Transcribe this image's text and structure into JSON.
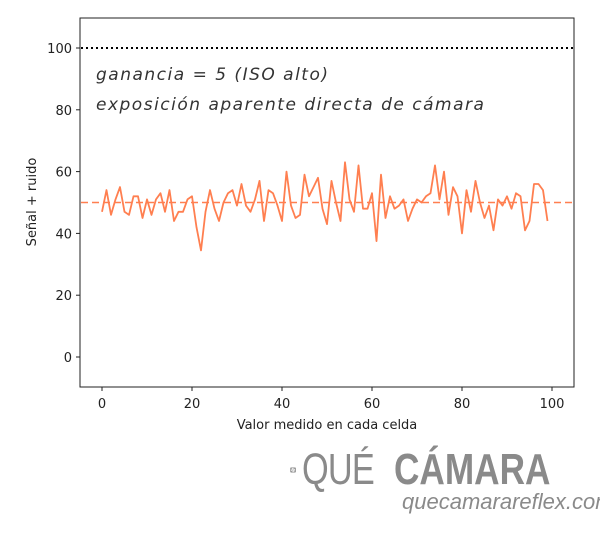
{
  "chart_data": {
    "type": "line",
    "title": "",
    "xlabel": "Valor medido en cada celda",
    "ylabel": "Señal + ruido",
    "xlim": [
      -5,
      104
    ],
    "ylim": [
      -10,
      110
    ],
    "xticks": [
      0,
      20,
      40,
      60,
      80,
      100
    ],
    "yticks": [
      0,
      20,
      40,
      60,
      80,
      100
    ],
    "grid": false,
    "annotations": [
      "ganancia = 5  (ISO alto)",
      "exposición aparente directa de cámara"
    ],
    "reference_lines": [
      {
        "name": "saturacion",
        "y": 100,
        "style": "dotted",
        "color": "#000000"
      },
      {
        "name": "senal-media",
        "y": 50,
        "style": "dashed",
        "color": "#ff7f50"
      }
    ],
    "series": [
      {
        "name": "señal + ruido",
        "color": "#ff7f50",
        "x": [
          0,
          1,
          2,
          3,
          4,
          5,
          6,
          7,
          8,
          9,
          10,
          11,
          12,
          13,
          14,
          15,
          16,
          17,
          18,
          19,
          20,
          21,
          22,
          23,
          24,
          25,
          26,
          27,
          28,
          29,
          30,
          31,
          32,
          33,
          34,
          35,
          36,
          37,
          38,
          39,
          40,
          41,
          42,
          43,
          44,
          45,
          46,
          47,
          48,
          49,
          50,
          51,
          52,
          53,
          54,
          55,
          56,
          57,
          58,
          59,
          60,
          61,
          62,
          63,
          64,
          65,
          66,
          67,
          68,
          69,
          70,
          71,
          72,
          73,
          74,
          75,
          76,
          77,
          78,
          79,
          80,
          81,
          82,
          83,
          84,
          85,
          86,
          87,
          88,
          89,
          90,
          91,
          92,
          93,
          94,
          95,
          96,
          97,
          98,
          99
        ],
        "values": [
          47,
          54,
          46,
          51,
          55,
          47,
          46,
          52,
          52,
          45,
          51,
          46,
          51,
          53,
          47,
          54,
          44,
          47,
          47,
          51,
          52,
          42,
          34.5,
          47,
          54,
          48,
          44,
          50,
          53,
          54,
          49,
          56,
          49,
          47,
          51,
          57,
          44,
          54,
          53,
          49,
          44,
          60,
          49,
          45,
          46,
          59,
          52,
          55,
          58,
          48,
          43,
          57,
          50,
          44,
          63,
          51,
          47,
          62,
          48,
          48,
          53,
          37.5,
          59,
          45,
          52,
          48,
          49,
          51,
          44,
          48,
          51,
          50,
          52,
          53,
          62,
          51,
          60,
          46,
          55,
          52,
          40,
          54,
          47,
          57,
          50,
          45,
          49,
          41,
          51,
          49,
          52,
          48,
          53,
          52,
          41,
          44,
          56,
          56,
          54,
          44
        ]
      }
    ]
  },
  "logo": {
    "brand_light": "QUÉ",
    "brand_bold": "CÁMARA",
    "url": "quecamarareflex.com",
    "color": "#8a8a8a"
  }
}
